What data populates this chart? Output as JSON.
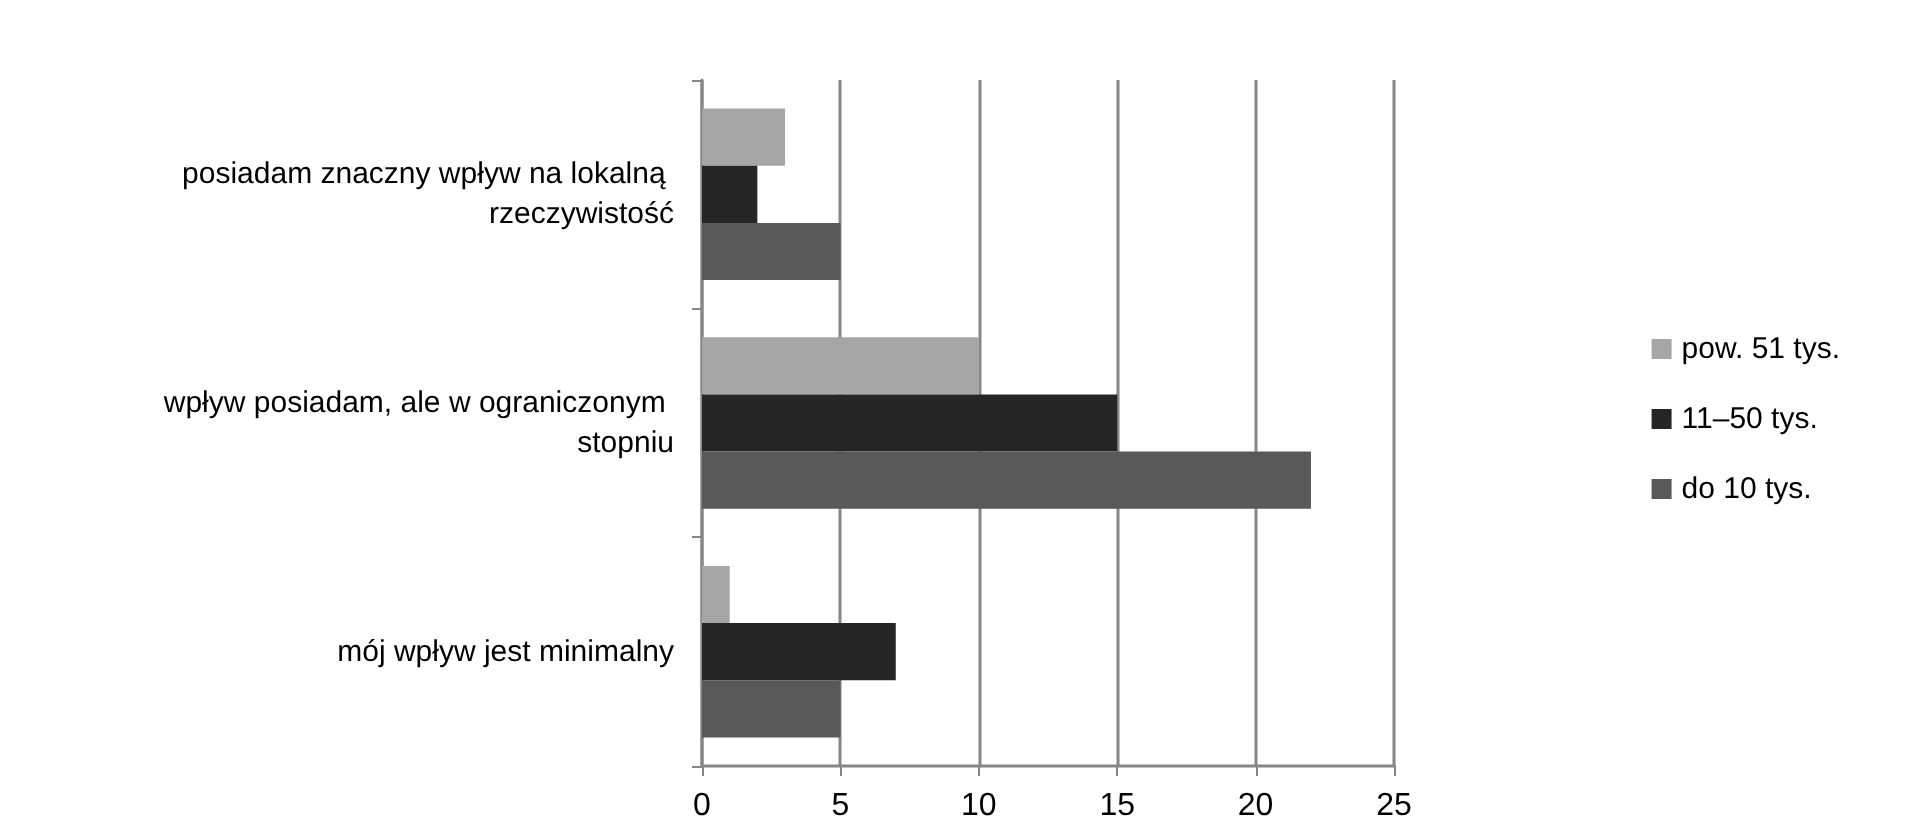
{
  "chart_data": {
    "type": "bar",
    "orientation": "horizontal",
    "categories": [
      "posiadam znaczny wpływ na lokalną rzeczywistość",
      "wpływ posiadam, ale w ograniczonym stopniu",
      "mój wpływ jest minimalny"
    ],
    "series": [
      {
        "name": "pow. 51 tys.",
        "color": "#a6a6a6",
        "values": [
          3,
          10,
          1
        ]
      },
      {
        "name": "11–50 tys.",
        "color": "#262626",
        "values": [
          2,
          15,
          7
        ]
      },
      {
        "name": "do 10 tys.",
        "color": "#595959",
        "values": [
          5,
          22,
          5
        ]
      }
    ],
    "xlim": [
      0,
      25
    ],
    "xticks": [
      0,
      5,
      10,
      15,
      20,
      25
    ],
    "grid": "x",
    "legend": "right"
  }
}
